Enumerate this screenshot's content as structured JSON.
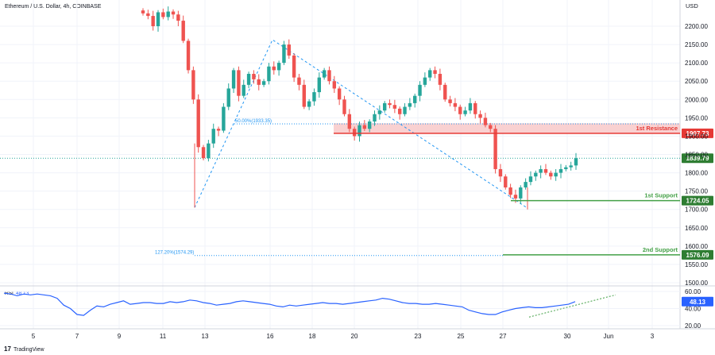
{
  "header": {
    "symbol_line": "Ethereum / U.S. Dollar, 4h, COINBASE",
    "currency": "USD"
  },
  "footer": {
    "brand": "TradingView"
  },
  "colors": {
    "up": "#26a69a",
    "down": "#ef5350",
    "resistance": "#e53935",
    "resistance_zone": "#f8c9c9",
    "support": "#43a047",
    "price_tag": "#2e7d32",
    "fib": "#2196f3",
    "rsi": "#2962ff",
    "rsi_trend": "#43a047"
  },
  "chart_data": [
    {
      "type": "candlestick",
      "ylim": [
        1500,
        2250
      ],
      "y_ticks": [
        2200,
        2150,
        2100,
        2050,
        2000,
        1950,
        1900,
        1850,
        1800,
        1750,
        1700,
        1650,
        1600,
        1550,
        1500
      ],
      "y_tick_labels": [
        "2200.00",
        "2150.00",
        "2100.00",
        "2050.00",
        "2000.00",
        "1950.00",
        "1900.00",
        "1850.00",
        "1800.00",
        "1750.00",
        "1700.00",
        "1650.00",
        "1600.00",
        "1550.00",
        "1500.00"
      ],
      "x_tick_labels": [
        "5",
        "7",
        "9",
        "11",
        "13",
        "16",
        "18",
        "20",
        "23",
        "25",
        "27",
        "30",
        "Jun",
        "3"
      ],
      "levels": [
        {
          "label": "1st Resistance",
          "value": 1907.73,
          "tag": "1907.73",
          "color": "#e53935"
        },
        {
          "label": "1st Support",
          "value": 1724.05,
          "tag": "1724.05",
          "color": "#43a047"
        },
        {
          "label": "2nd Support",
          "value": 1576.09,
          "tag": "1576.09",
          "color": "#43a047"
        }
      ],
      "current_price": {
        "value": 1839.79,
        "tag": "1839.79"
      },
      "resistance_zone": [
        1907.73,
        1935
      ],
      "fib_levels": [
        {
          "text": "50.00%(1933.35)",
          "value": 1933.35
        },
        {
          "text": "127.20%(1574.29)",
          "value": 1574.29
        }
      ],
      "closes": [
        2235,
        2228,
        2200,
        2238,
        2225,
        2240,
        2232,
        2215,
        2160,
        2080,
        2000,
        1870,
        1840,
        1880,
        1920,
        1915,
        1980,
        2030,
        2080,
        2010,
        2040,
        2070,
        2055,
        2040,
        2050,
        2090,
        2080,
        2100,
        2150,
        2120,
        2060,
        2040,
        1980,
        1995,
        2020,
        2060,
        2080,
        2050,
        2030,
        2000,
        1960,
        1920,
        1900,
        1930,
        1920,
        1940,
        1960,
        1970,
        1990,
        1985,
        1975,
        1960,
        1980,
        1990,
        2010,
        2040,
        2060,
        2080,
        2070,
        2040,
        2000,
        1990,
        1980,
        1960,
        1970,
        1990,
        1960,
        1950,
        1930,
        1920,
        1810,
        1790,
        1760,
        1740,
        1730,
        1760,
        1775,
        1790,
        1800,
        1810,
        1800,
        1790,
        1800,
        1810,
        1815,
        1820,
        1839.79
      ]
    },
    {
      "type": "line",
      "name": "RSI",
      "value_tag": "48.13",
      "ylim": [
        18,
        62
      ],
      "y_ticks": [
        60,
        40,
        20
      ],
      "y_tick_labels": [
        "60.00",
        "40.00",
        "20.00"
      ],
      "values": [
        58,
        57,
        55,
        57,
        56,
        57,
        56,
        55,
        52,
        44,
        40,
        33,
        32,
        38,
        43,
        42,
        45,
        47,
        49,
        45,
        46,
        47,
        47,
        46,
        46,
        48,
        47,
        48,
        50,
        49,
        47,
        46,
        44,
        45,
        46,
        48,
        49,
        48,
        47,
        46,
        45,
        43,
        42,
        44,
        43,
        44,
        45,
        46,
        47,
        46,
        46,
        45,
        46,
        47,
        48,
        49,
        50,
        52,
        51,
        49,
        47,
        46,
        46,
        45,
        45,
        46,
        45,
        44,
        43,
        42,
        38,
        36,
        34,
        33,
        33,
        36,
        38,
        40,
        41,
        42,
        41,
        41,
        42,
        43,
        44,
        45,
        48.13
      ]
    }
  ]
}
